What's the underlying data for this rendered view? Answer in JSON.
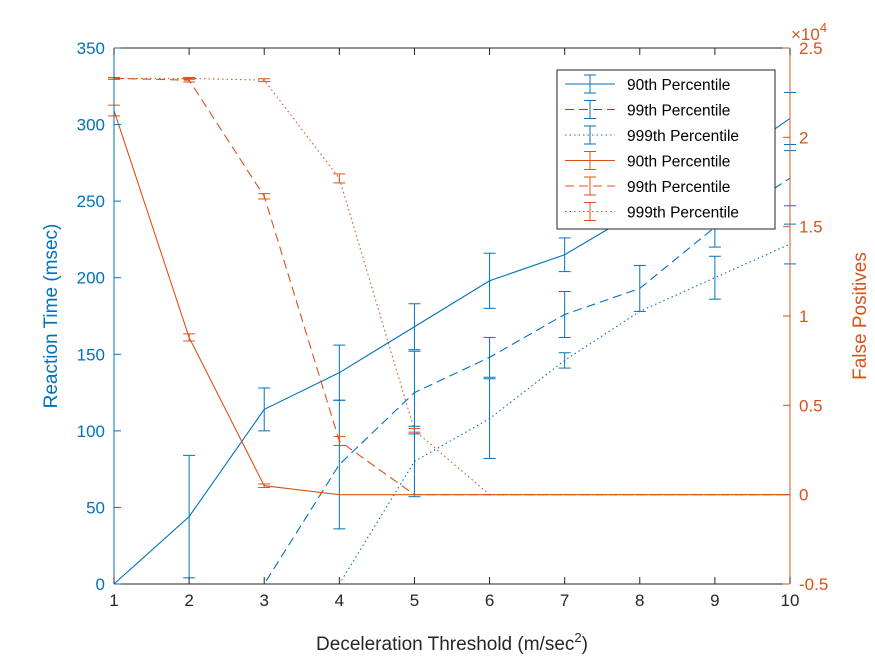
{
  "chart_data": {
    "type": "line",
    "xlabel": "Deceleration Threshold (m/sec",
    "xlabel_sup": "2",
    "xlabel_close": ")",
    "ylabel_left": "Reaction Time (msec)",
    "ylabel_right": "False Positives",
    "right_exponent_base": "×10",
    "right_exponent_power": "4",
    "xlim": [
      1,
      10
    ],
    "ylim_left": [
      0,
      350
    ],
    "ylim_right": [
      -5000,
      25000
    ],
    "x_ticks": [
      1,
      2,
      3,
      4,
      5,
      6,
      7,
      8,
      9,
      10
    ],
    "y_left_ticks": [
      0,
      50,
      100,
      150,
      200,
      250,
      300,
      350
    ],
    "y_right_ticks": [
      -5000,
      0,
      5000,
      10000,
      15000,
      20000,
      25000
    ],
    "y_right_tick_labels": [
      "-0.5",
      "0",
      "0.5",
      "1",
      "1.5",
      "2",
      "2.5"
    ],
    "grid": false,
    "legend_position": "top-right",
    "colors": {
      "left": "#0072BD",
      "right": "#D95319"
    },
    "x": [
      1,
      2,
      3,
      4,
      5,
      6,
      7,
      8,
      9,
      10
    ],
    "series": [
      {
        "name": "90th Percentile",
        "axis": "left",
        "dash": "solid",
        "values": [
          0,
          44,
          114,
          138,
          168,
          198,
          215,
          244,
          270,
          304
        ],
        "err": [
          0,
          40,
          14,
          18,
          15,
          18,
          11,
          12,
          15,
          17
        ]
      },
      {
        "name": "99th Percentile",
        "axis": "left",
        "dash": "dashed",
        "values": [
          0,
          0,
          0,
          78,
          125,
          148,
          176,
          193,
          233,
          265
        ],
        "err": [
          0,
          0,
          0,
          42,
          27,
          13,
          15,
          15,
          13,
          18
        ]
      },
      {
        "name": "999th Percentile",
        "axis": "left",
        "dash": "dotted",
        "values": [
          0,
          0,
          0,
          0,
          80,
          108,
          146,
          178,
          200,
          222
        ],
        "err": [
          0,
          0,
          0,
          0,
          23,
          26,
          5,
          0,
          14,
          13
        ]
      },
      {
        "name": "90th Percentile",
        "axis": "right",
        "dash": "solid",
        "values": [
          21500,
          8800,
          500,
          0,
          0,
          0,
          0,
          0,
          0,
          0
        ],
        "err": [
          300,
          200,
          100,
          0,
          0,
          0,
          0,
          0,
          0,
          0
        ]
      },
      {
        "name": "99th Percentile",
        "axis": "right",
        "dash": "dashed",
        "values": [
          23300,
          23200,
          16700,
          3000,
          0,
          0,
          0,
          0,
          0,
          0
        ],
        "err": [
          50,
          100,
          150,
          250,
          0,
          0,
          0,
          0,
          0,
          0
        ]
      },
      {
        "name": "999th Percentile",
        "axis": "right",
        "dash": "dotted",
        "values": [
          23300,
          23300,
          23200,
          17700,
          3600,
          0,
          0,
          0,
          0,
          0
        ],
        "err": [
          50,
          50,
          80,
          250,
          100,
          0,
          0,
          0,
          0,
          0
        ]
      }
    ]
  }
}
